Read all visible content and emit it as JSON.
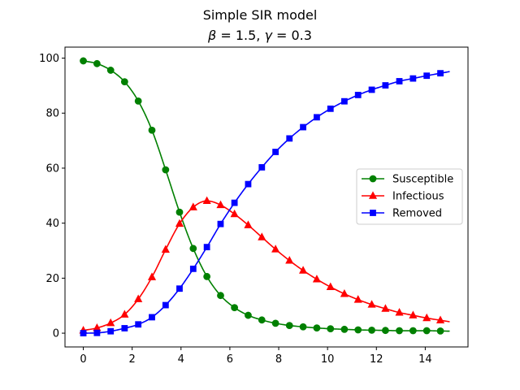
{
  "chart_data": {
    "type": "line",
    "title": "Simple SIR model",
    "subtitle": "β = 1.5, γ = 0.3",
    "xlabel": "",
    "ylabel": "",
    "xlim": [
      -0.75,
      15.75
    ],
    "ylim": [
      -5,
      104
    ],
    "x_ticks": [
      0,
      2,
      4,
      6,
      8,
      10,
      12,
      14
    ],
    "y_ticks": [
      0,
      20,
      40,
      60,
      80,
      100
    ],
    "grid": false,
    "legend_position": "center-right",
    "marker_x": [
      0,
      0.56,
      1.12,
      1.69,
      2.25,
      2.81,
      3.37,
      3.94,
      4.5,
      5.06,
      5.62,
      6.19,
      6.75,
      7.31,
      7.87,
      8.44,
      9.0,
      9.56,
      10.12,
      10.69,
      11.25,
      11.81,
      12.37,
      12.94,
      13.5,
      14.06,
      14.62
    ],
    "series": [
      {
        "name": "Susceptible",
        "color": "#008000",
        "marker": "circle",
        "values": [
          99.0,
          98.0,
          95.6,
          91.4,
          84.4,
          73.8,
          59.4,
          44.0,
          30.8,
          20.6,
          13.7,
          9.3,
          6.5,
          4.8,
          3.6,
          2.8,
          2.3,
          1.9,
          1.6,
          1.4,
          1.2,
          1.1,
          1.0,
          0.9,
          0.9,
          0.9,
          0.8
        ]
      },
      {
        "name": "Infectious",
        "color": "#ff0000",
        "marker": "triangle",
        "values": [
          1.0,
          1.9,
          3.7,
          6.8,
          12.4,
          20.4,
          30.4,
          39.8,
          45.8,
          48.1,
          46.6,
          43.3,
          39.3,
          34.9,
          30.5,
          26.4,
          22.8,
          19.6,
          16.8,
          14.3,
          12.2,
          10.4,
          8.9,
          7.5,
          6.5,
          5.5,
          4.7
        ]
      },
      {
        "name": "Removed",
        "color": "#0000ff",
        "marker": "square",
        "values": [
          0.0,
          0.1,
          0.7,
          1.8,
          3.2,
          5.8,
          10.2,
          16.2,
          23.4,
          31.3,
          39.7,
          47.4,
          54.2,
          60.3,
          65.9,
          70.8,
          74.9,
          78.5,
          81.6,
          84.3,
          86.6,
          88.5,
          90.1,
          91.6,
          92.6,
          93.6,
          94.5
        ]
      }
    ]
  }
}
